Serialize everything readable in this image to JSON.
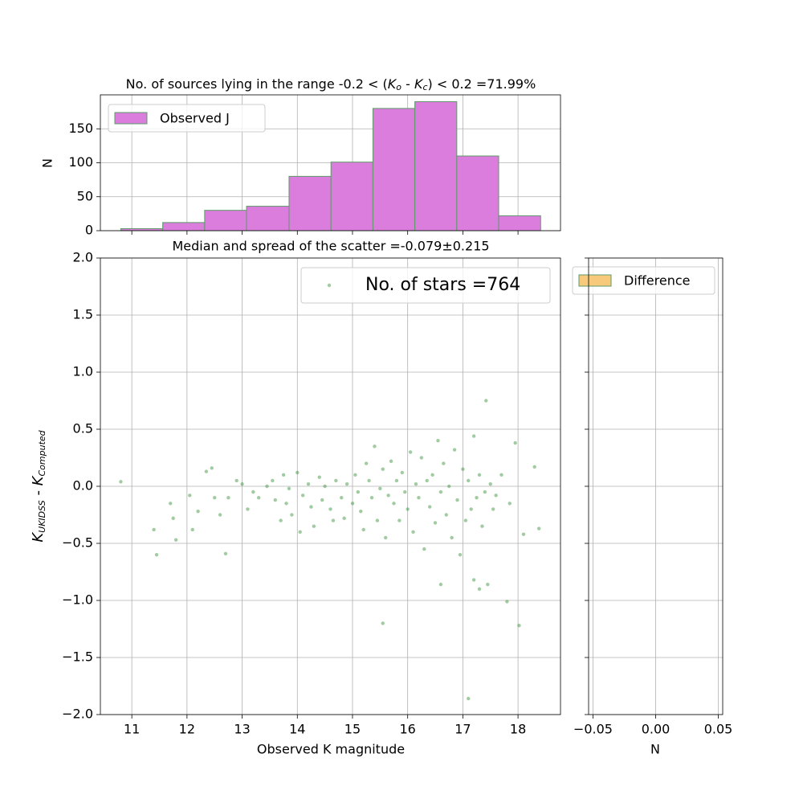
{
  "chart_data": [
    {
      "type": "histogram",
      "title": [
        "No. of sources lying in the range -0.2 < (",
        "K",
        "o",
        " - ",
        "K",
        "c",
        ") < 0.2 =71.99%"
      ],
      "ylabel": "N",
      "bins": [
        10.8,
        11.56,
        12.32,
        13.08,
        13.85,
        14.61,
        15.37,
        16.13,
        16.89,
        17.65,
        18.41
      ],
      "series": [
        {
          "name": "Observed J",
          "color": "#da7ddc",
          "edgecolor": "#5f9a6a",
          "values": [
            3,
            12,
            30,
            36,
            80,
            101,
            180,
            190,
            110,
            22
          ]
        }
      ],
      "xlim": [
        10.43,
        18.77
      ],
      "ylim": [
        0,
        200
      ],
      "xticks": [
        11,
        12,
        13,
        14,
        15,
        16,
        17,
        18
      ],
      "yticks": [
        0,
        50,
        100,
        150
      ],
      "grid": true,
      "legend": "upper left"
    },
    {
      "type": "scatter",
      "title": "Median and spread of the scatter =-0.079±0.215",
      "xlabel": "Observed K magnitude",
      "ylabel": [
        "K",
        "UKIDSS",
        " - ",
        "K",
        "Computed"
      ],
      "x": [
        10.8,
        11.45,
        11.4,
        11.7,
        11.75,
        11.8,
        12.05,
        12.1,
        12.2,
        12.35,
        12.45,
        12.5,
        12.6,
        12.7,
        12.75,
        12.9,
        13.0,
        13.1,
        13.2,
        13.3,
        13.45,
        13.55,
        13.6,
        13.7,
        13.75,
        13.8,
        13.85,
        13.9,
        14.0,
        14.05,
        14.1,
        14.2,
        14.25,
        14.3,
        14.4,
        14.45,
        14.5,
        14.6,
        14.65,
        14.7,
        14.8,
        14.85,
        14.9,
        15.0,
        15.05,
        15.1,
        15.15,
        15.2,
        15.25,
        15.3,
        15.35,
        15.4,
        15.45,
        15.5,
        15.55,
        15.55,
        15.6,
        15.65,
        15.7,
        15.75,
        15.8,
        15.85,
        15.9,
        15.95,
        16.0,
        16.05,
        16.1,
        16.15,
        16.2,
        16.25,
        16.3,
        16.35,
        16.4,
        16.45,
        16.5,
        16.55,
        16.6,
        16.6,
        16.65,
        16.7,
        16.75,
        16.8,
        16.85,
        16.9,
        16.95,
        17.0,
        17.05,
        17.1,
        17.1,
        17.15,
        17.2,
        17.2,
        17.25,
        17.3,
        17.3,
        17.35,
        17.4,
        17.42,
        17.45,
        17.5,
        17.55,
        17.6,
        17.7,
        17.8,
        17.85,
        17.95,
        18.02,
        18.1,
        18.3,
        18.38
      ],
      "series": [
        {
          "name": "No. of stars =764",
          "color": "#2e8b2e",
          "values": [
            0.04,
            -0.6,
            -0.38,
            -0.15,
            -0.28,
            -0.47,
            -0.08,
            -0.38,
            -0.22,
            0.13,
            0.16,
            -0.1,
            -0.25,
            -0.59,
            -0.1,
            0.05,
            0.02,
            -0.2,
            -0.05,
            -0.1,
            0.0,
            0.05,
            -0.12,
            -0.3,
            0.1,
            -0.15,
            -0.02,
            -0.25,
            0.12,
            -0.4,
            -0.08,
            0.02,
            -0.18,
            -0.35,
            0.08,
            -0.12,
            0.0,
            -0.2,
            -0.3,
            0.05,
            -0.1,
            -0.28,
            0.02,
            -0.15,
            0.1,
            -0.05,
            -0.22,
            -0.38,
            0.2,
            0.05,
            -0.1,
            0.35,
            -0.3,
            -0.02,
            -1.2,
            0.15,
            -0.45,
            -0.08,
            0.22,
            -0.15,
            0.05,
            -0.3,
            0.12,
            -0.05,
            -0.2,
            0.3,
            -0.4,
            0.02,
            -0.1,
            0.25,
            -0.55,
            0.05,
            -0.18,
            0.1,
            -0.32,
            0.4,
            -0.86,
            -0.05,
            0.2,
            -0.25,
            0.0,
            -0.45,
            0.32,
            -0.12,
            -0.6,
            0.15,
            -0.3,
            -1.86,
            0.05,
            -0.2,
            0.44,
            -0.82,
            -0.1,
            -0.9,
            0.1,
            -0.35,
            -0.05,
            0.75,
            -0.86,
            0.02,
            -0.2,
            -0.08,
            0.1,
            -1.01,
            -0.15,
            0.38,
            -1.22,
            -0.42,
            0.17,
            -0.37
          ]
        }
      ],
      "xlim": [
        10.43,
        18.77
      ],
      "ylim": [
        -2.0,
        2.0
      ],
      "xticks": [
        11,
        12,
        13,
        14,
        15,
        16,
        17,
        18
      ],
      "yticks": [
        {
          "value": -2.0,
          "label": "−2.0"
        },
        {
          "value": -1.5,
          "label": "−1.5"
        },
        {
          "value": -1.0,
          "label": "−1.0"
        },
        {
          "value": -0.5,
          "label": "−0.5"
        },
        {
          "value": 0.0,
          "label": "0.0"
        },
        {
          "value": 0.5,
          "label": "0.5"
        },
        {
          "value": 1.0,
          "label": "1.0"
        },
        {
          "value": 1.5,
          "label": "1.5"
        },
        {
          "value": 2.0,
          "label": "2.0"
        }
      ],
      "grid": true,
      "legend": "upper right"
    },
    {
      "type": "histogram",
      "xlabel": "N",
      "series": [
        {
          "name": "Difference",
          "color": "#f7c97a",
          "edgecolor": "#5f9a6a",
          "values": []
        }
      ],
      "xlim": [
        -0.0535,
        0.0535
      ],
      "ylim": [
        -2.0,
        2.0
      ],
      "xticks": [
        {
          "value": -0.05,
          "label": "−0.05"
        },
        {
          "value": 0,
          "label": "0.00"
        },
        {
          "value": 0.05,
          "label": "0.05"
        }
      ],
      "yticks": [
        -2.0,
        -1.5,
        -1.0,
        -0.5,
        0.0,
        0.5,
        1.0,
        1.5,
        2.0
      ],
      "grid": true,
      "legend": "upper left"
    }
  ]
}
